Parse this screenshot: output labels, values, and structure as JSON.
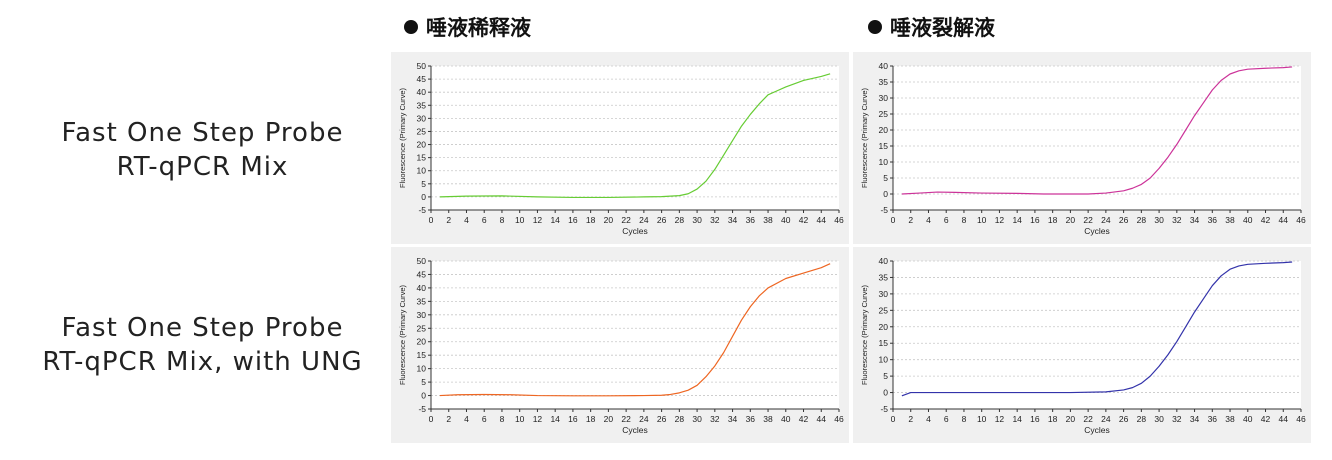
{
  "column_headers": [
    "唾液稀释液",
    "唾液裂解液"
  ],
  "row_labels": [
    {
      "line1": "Fast One Step Probe",
      "line2": "RT-qPCR Mix"
    },
    {
      "line1": "Fast One Step Probe",
      "line2": "RT-qPCR Mix, with UNG"
    }
  ],
  "chart_data": [
    {
      "type": "line",
      "xlabel": "Cycles",
      "ylabel": "Fluorescence (Primary Curve)",
      "xlim": [
        0,
        46
      ],
      "ylim": [
        -5,
        50
      ],
      "xticks": [
        "0",
        "2",
        "4",
        "6",
        "8",
        "10",
        "12",
        "14",
        "16",
        "18",
        "20",
        "22",
        "24",
        "26",
        "28",
        "30",
        "32",
        "34",
        "36",
        "38",
        "40",
        "42",
        "44",
        "46"
      ],
      "yticks": [
        "-5",
        "0",
        "5",
        "10",
        "15",
        "20",
        "25",
        "30",
        "35",
        "40",
        "45",
        "50"
      ],
      "grid": true,
      "series": [
        {
          "color": "#66cc33",
          "x": [
            1,
            4,
            8,
            12,
            16,
            20,
            24,
            26,
            28,
            29,
            30,
            31,
            32,
            33,
            34,
            35,
            36,
            37,
            38,
            39,
            40,
            42,
            44,
            45
          ],
          "y": [
            0,
            0.3,
            0.4,
            0,
            -0.2,
            -0.2,
            0,
            0.1,
            0.5,
            1.2,
            3,
            6,
            10.5,
            16,
            21.5,
            27,
            31.5,
            35.5,
            39,
            40.5,
            42,
            44.5,
            46,
            47
          ]
        }
      ]
    },
    {
      "type": "line",
      "xlabel": "Cycles",
      "ylabel": "Fluorescence (Primary Curve)",
      "xlim": [
        0,
        46
      ],
      "ylim": [
        -5,
        40
      ],
      "xticks": [
        "0",
        "2",
        "4",
        "6",
        "8",
        "10",
        "12",
        "14",
        "16",
        "18",
        "20",
        "22",
        "24",
        "26",
        "28",
        "30",
        "32",
        "34",
        "36",
        "38",
        "40",
        "42",
        "44",
        "46"
      ],
      "yticks": [
        "-5",
        "0",
        "5",
        "10",
        "15",
        "20",
        "25",
        "30",
        "35",
        "40"
      ],
      "grid": true,
      "series": [
        {
          "color": "#cc3399",
          "x": [
            1,
            3,
            5,
            7,
            10,
            14,
            17,
            20,
            22,
            24,
            26,
            27,
            28,
            29,
            30,
            31,
            32,
            33,
            34,
            35,
            36,
            37,
            38,
            39,
            40,
            42,
            44,
            45
          ],
          "y": [
            0,
            0.3,
            0.6,
            0.5,
            0.3,
            0.2,
            0,
            0,
            0,
            0.3,
            1,
            1.8,
            3,
            5,
            8,
            11.5,
            15.5,
            20,
            24.5,
            28.5,
            32.5,
            35.5,
            37.5,
            38.5,
            39,
            39.3,
            39.5,
            39.7
          ]
        }
      ]
    },
    {
      "type": "line",
      "xlabel": "Cycles",
      "ylabel": "Fluorescence (Primary Curve)",
      "xlim": [
        0,
        46
      ],
      "ylim": [
        -5,
        50
      ],
      "xticks": [
        "0",
        "2",
        "4",
        "6",
        "8",
        "10",
        "12",
        "14",
        "16",
        "18",
        "20",
        "22",
        "24",
        "26",
        "28",
        "30",
        "32",
        "34",
        "36",
        "38",
        "40",
        "42",
        "44",
        "46"
      ],
      "yticks": [
        "-5",
        "0",
        "5",
        "10",
        "15",
        "20",
        "25",
        "30",
        "35",
        "40",
        "45",
        "50"
      ],
      "grid": true,
      "series": [
        {
          "color": "#ee6622",
          "x": [
            1,
            3,
            6,
            9,
            12,
            16,
            20,
            24,
            26,
            27,
            28,
            29,
            30,
            31,
            32,
            33,
            34,
            35,
            36,
            37,
            38,
            40,
            42,
            44,
            45
          ],
          "y": [
            0,
            0.3,
            0.4,
            0.3,
            0,
            -0.1,
            -0.1,
            0,
            0.1,
            0.4,
            1,
            2,
            3.8,
            7,
            11,
            16,
            22,
            28,
            33,
            37,
            40,
            43.5,
            45.5,
            47.5,
            49
          ]
        }
      ]
    },
    {
      "type": "line",
      "xlabel": "Cycles",
      "ylabel": "Fluorescence (Primary Curve)",
      "xlim": [
        0,
        46
      ],
      "ylim": [
        -5,
        40
      ],
      "xticks": [
        "0",
        "2",
        "4",
        "6",
        "8",
        "10",
        "12",
        "14",
        "16",
        "18",
        "20",
        "22",
        "24",
        "26",
        "28",
        "30",
        "32",
        "34",
        "36",
        "38",
        "40",
        "42",
        "44",
        "46"
      ],
      "yticks": [
        "-5",
        "0",
        "5",
        "10",
        "15",
        "20",
        "25",
        "30",
        "35",
        "40"
      ],
      "grid": true,
      "series": [
        {
          "color": "#3333aa",
          "x": [
            1,
            2,
            4,
            8,
            12,
            16,
            20,
            24,
            26,
            27,
            28,
            29,
            30,
            31,
            32,
            33,
            34,
            35,
            36,
            37,
            38,
            39,
            40,
            42,
            44,
            45
          ],
          "y": [
            -1,
            0,
            0,
            0,
            0,
            0,
            0,
            0.2,
            0.8,
            1.5,
            2.8,
            5,
            8,
            11.5,
            15.5,
            20,
            24.5,
            28.5,
            32.5,
            35.5,
            37.5,
            38.5,
            39,
            39.3,
            39.5,
            39.7
          ]
        }
      ]
    }
  ]
}
